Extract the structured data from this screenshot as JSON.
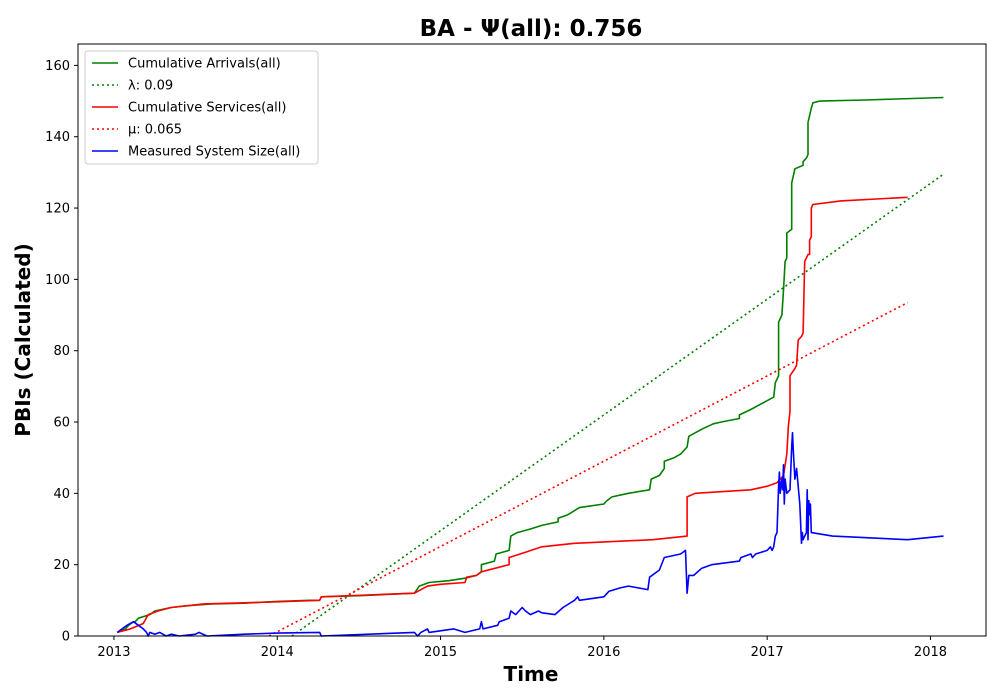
{
  "chart_data": {
    "type": "line",
    "title": "BA -  Ψ(all): 0.756",
    "xlabel": "Time",
    "ylabel": "PBIs (Calculated)",
    "xlim": [
      2012.78,
      2018.34
    ],
    "ylim": [
      0,
      166
    ],
    "x_ticks": [
      2013,
      2014,
      2015,
      2016,
      2017,
      2018
    ],
    "x_tick_labels": [
      "2013",
      "2014",
      "2015",
      "2016",
      "2017",
      "2018"
    ],
    "y_ticks": [
      0,
      20,
      40,
      60,
      80,
      100,
      120,
      140,
      160
    ],
    "y_tick_labels": [
      "0",
      "20",
      "40",
      "60",
      "80",
      "100",
      "120",
      "140",
      "160"
    ],
    "grid": false,
    "legend_position": "top-left",
    "series": [
      {
        "name": "Cumulative Arrivals(all)",
        "color": "#008000",
        "dash": "solid",
        "points": [
          [
            2013.02,
            1
          ],
          [
            2013.07,
            2
          ],
          [
            2013.09,
            3
          ],
          [
            2013.12,
            4
          ],
          [
            2013.13,
            4
          ],
          [
            2013.15,
            5
          ],
          [
            2013.22,
            6
          ],
          [
            2013.25,
            7
          ],
          [
            2013.3,
            7.5
          ],
          [
            2013.35,
            8
          ],
          [
            2013.45,
            8.5
          ],
          [
            2013.6,
            9
          ],
          [
            2013.8,
            9.2
          ],
          [
            2014.0,
            9.7
          ],
          [
            2014.2,
            10
          ],
          [
            2014.26,
            10
          ],
          [
            2014.27,
            11
          ],
          [
            2014.5,
            11.3
          ],
          [
            2014.84,
            12
          ],
          [
            2014.87,
            14
          ],
          [
            2014.93,
            15
          ],
          [
            2015.05,
            15.5
          ],
          [
            2015.15,
            16.2
          ],
          [
            2015.22,
            17
          ],
          [
            2015.25,
            18
          ],
          [
            2015.25,
            20
          ],
          [
            2015.33,
            21
          ],
          [
            2015.34,
            23
          ],
          [
            2015.42,
            24
          ],
          [
            2015.43,
            28
          ],
          [
            2015.47,
            29
          ],
          [
            2015.55,
            30
          ],
          [
            2015.62,
            31
          ],
          [
            2015.72,
            32
          ],
          [
            2015.72,
            33
          ],
          [
            2015.78,
            34
          ],
          [
            2015.85,
            36
          ],
          [
            2016.0,
            37
          ],
          [
            2016.02,
            38
          ],
          [
            2016.05,
            39
          ],
          [
            2016.15,
            40
          ],
          [
            2016.28,
            41
          ],
          [
            2016.29,
            44
          ],
          [
            2016.34,
            45
          ],
          [
            2016.37,
            47
          ],
          [
            2016.37,
            49
          ],
          [
            2016.43,
            50
          ],
          [
            2016.47,
            51
          ],
          [
            2016.51,
            53
          ],
          [
            2016.52,
            56
          ],
          [
            2016.6,
            58
          ],
          [
            2016.67,
            59.5
          ],
          [
            2016.72,
            60
          ],
          [
            2016.83,
            61
          ],
          [
            2016.83,
            62
          ],
          [
            2016.9,
            63.5
          ],
          [
            2016.98,
            65.5
          ],
          [
            2017.04,
            67
          ],
          [
            2017.05,
            71
          ],
          [
            2017.07,
            73
          ],
          [
            2017.07,
            88
          ],
          [
            2017.09,
            90
          ],
          [
            2017.1,
            97
          ],
          [
            2017.11,
            105
          ],
          [
            2017.12,
            106
          ],
          [
            2017.12,
            113
          ],
          [
            2017.15,
            114
          ],
          [
            2017.15,
            127
          ],
          [
            2017.17,
            131
          ],
          [
            2017.22,
            132
          ],
          [
            2017.22,
            133
          ],
          [
            2017.24,
            134
          ],
          [
            2017.25,
            135
          ],
          [
            2017.25,
            144
          ],
          [
            2017.27,
            148
          ],
          [
            2017.28,
            149.5
          ],
          [
            2017.32,
            150
          ],
          [
            2017.6,
            150.3
          ],
          [
            2018.08,
            151
          ]
        ]
      },
      {
        "name": "λ: 0.09",
        "color": "#008000",
        "dash": "dotted",
        "points": [
          [
            2014.09,
            0
          ],
          [
            2018.08,
            129.5
          ]
        ]
      },
      {
        "name": "Cumulative Services(all)",
        "color": "#ff0000",
        "dash": "solid",
        "points": [
          [
            2013.02,
            1
          ],
          [
            2013.1,
            2
          ],
          [
            2013.18,
            3.5
          ],
          [
            2013.21,
            6
          ],
          [
            2013.27,
            7
          ],
          [
            2013.35,
            8
          ],
          [
            2013.55,
            9
          ],
          [
            2013.8,
            9.3
          ],
          [
            2014.0,
            9.6
          ],
          [
            2014.26,
            10
          ],
          [
            2014.27,
            11
          ],
          [
            2014.55,
            11.5
          ],
          [
            2014.84,
            12
          ],
          [
            2014.92,
            14
          ],
          [
            2015.0,
            14.5
          ],
          [
            2015.15,
            15
          ],
          [
            2015.16,
            16.5
          ],
          [
            2015.22,
            17
          ],
          [
            2015.25,
            18
          ],
          [
            2015.42,
            20
          ],
          [
            2015.42,
            22
          ],
          [
            2015.52,
            23.5
          ],
          [
            2015.62,
            25
          ],
          [
            2015.82,
            26
          ],
          [
            2016.3,
            27
          ],
          [
            2016.51,
            28
          ],
          [
            2016.51,
            39
          ],
          [
            2016.56,
            40
          ],
          [
            2016.9,
            41
          ],
          [
            2017.0,
            42
          ],
          [
            2017.06,
            43
          ],
          [
            2017.1,
            45
          ],
          [
            2017.12,
            51
          ],
          [
            2017.13,
            59
          ],
          [
            2017.14,
            63
          ],
          [
            2017.14,
            73
          ],
          [
            2017.17,
            75
          ],
          [
            2017.18,
            76
          ],
          [
            2017.19,
            83
          ],
          [
            2017.21,
            84
          ],
          [
            2017.22,
            85
          ],
          [
            2017.23,
            105
          ],
          [
            2017.25,
            107
          ],
          [
            2017.26,
            107
          ],
          [
            2017.26,
            111
          ],
          [
            2017.27,
            112
          ],
          [
            2017.27,
            120
          ],
          [
            2017.28,
            121
          ],
          [
            2017.45,
            122
          ],
          [
            2017.86,
            123
          ]
        ]
      },
      {
        "name": "μ: 0.065",
        "color": "#ff0000",
        "dash": "dotted",
        "points": [
          [
            2013.95,
            0
          ],
          [
            2017.86,
            93.5
          ]
        ]
      },
      {
        "name": "Measured System Size(all)",
        "color": "#0000ff",
        "dash": "solid",
        "points": [
          [
            2013.02,
            1
          ],
          [
            2013.05,
            2
          ],
          [
            2013.08,
            3
          ],
          [
            2013.12,
            4
          ],
          [
            2013.15,
            3
          ],
          [
            2013.18,
            2
          ],
          [
            2013.2,
            1
          ],
          [
            2013.21,
            0
          ],
          [
            2013.22,
            1
          ],
          [
            2013.25,
            0.5
          ],
          [
            2013.28,
            1
          ],
          [
            2013.3,
            0.5
          ],
          [
            2013.32,
            0
          ],
          [
            2013.35,
            0.5
          ],
          [
            2013.4,
            0
          ],
          [
            2013.5,
            0.5
          ],
          [
            2013.52,
            1
          ],
          [
            2013.57,
            0
          ],
          [
            2013.8,
            0.5
          ],
          [
            2014.0,
            0.8
          ],
          [
            2014.26,
            1
          ],
          [
            2014.27,
            0
          ],
          [
            2014.84,
            1
          ],
          [
            2014.86,
            0
          ],
          [
            2014.88,
            1
          ],
          [
            2014.92,
            2
          ],
          [
            2014.93,
            1
          ],
          [
            2015.08,
            2
          ],
          [
            2015.15,
            1
          ],
          [
            2015.24,
            2
          ],
          [
            2015.25,
            4
          ],
          [
            2015.26,
            2
          ],
          [
            2015.35,
            3
          ],
          [
            2015.36,
            4
          ],
          [
            2015.42,
            5
          ],
          [
            2015.43,
            7
          ],
          [
            2015.46,
            6
          ],
          [
            2015.5,
            8
          ],
          [
            2015.52,
            7
          ],
          [
            2015.55,
            6
          ],
          [
            2015.6,
            7
          ],
          [
            2015.62,
            6.5
          ],
          [
            2015.7,
            6
          ],
          [
            2015.75,
            8
          ],
          [
            2015.82,
            10
          ],
          [
            2015.84,
            11
          ],
          [
            2015.85,
            10
          ],
          [
            2016.0,
            11
          ],
          [
            2016.03,
            12.5
          ],
          [
            2016.1,
            13.5
          ],
          [
            2016.15,
            14
          ],
          [
            2016.27,
            13
          ],
          [
            2016.28,
            16.5
          ],
          [
            2016.34,
            18.5
          ],
          [
            2016.37,
            22
          ],
          [
            2016.47,
            23
          ],
          [
            2016.5,
            24
          ],
          [
            2016.51,
            12
          ],
          [
            2016.52,
            17
          ],
          [
            2016.55,
            17
          ],
          [
            2016.6,
            19
          ],
          [
            2016.66,
            20
          ],
          [
            2016.83,
            21
          ],
          [
            2016.84,
            22
          ],
          [
            2016.9,
            23
          ],
          [
            2016.91,
            22
          ],
          [
            2016.93,
            23
          ],
          [
            2017.0,
            24
          ],
          [
            2017.02,
            25
          ],
          [
            2017.03,
            24
          ],
          [
            2017.04,
            25
          ],
          [
            2017.05,
            28
          ],
          [
            2017.06,
            29
          ],
          [
            2017.07,
            42
          ],
          [
            2017.075,
            46
          ],
          [
            2017.08,
            40
          ],
          [
            2017.09,
            44
          ],
          [
            2017.095,
            41
          ],
          [
            2017.1,
            48
          ],
          [
            2017.105,
            37
          ],
          [
            2017.11,
            44
          ],
          [
            2017.12,
            40
          ],
          [
            2017.14,
            41
          ],
          [
            2017.15,
            53
          ],
          [
            2017.155,
            57
          ],
          [
            2017.16,
            52
          ],
          [
            2017.17,
            44
          ],
          [
            2017.18,
            47
          ],
          [
            2017.2,
            37
          ],
          [
            2017.21,
            26
          ],
          [
            2017.215,
            29
          ],
          [
            2017.22,
            27
          ],
          [
            2017.23,
            28
          ],
          [
            2017.24,
            29
          ],
          [
            2017.245,
            41
          ],
          [
            2017.25,
            27
          ],
          [
            2017.255,
            38
          ],
          [
            2017.26,
            34
          ],
          [
            2017.265,
            37
          ],
          [
            2017.27,
            29
          ],
          [
            2017.4,
            28
          ],
          [
            2017.86,
            27
          ],
          [
            2018.08,
            28
          ]
        ]
      }
    ]
  }
}
